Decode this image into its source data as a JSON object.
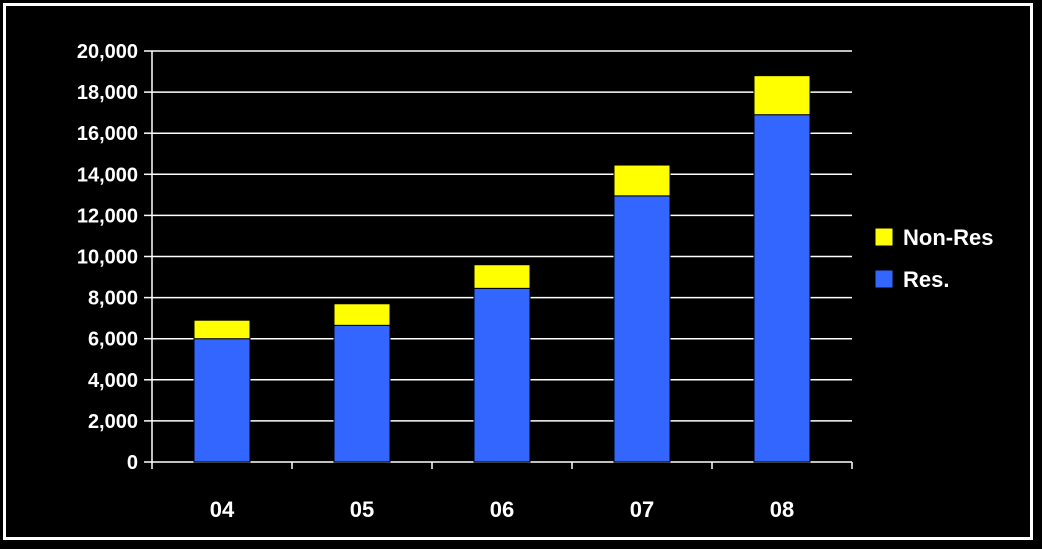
{
  "chart_data": {
    "type": "bar",
    "stacked": true,
    "categories": [
      "04",
      "05",
      "06",
      "07",
      "08"
    ],
    "series": [
      {
        "name": "Res.",
        "color": "#3366ff",
        "values": [
          6000,
          6650,
          8450,
          12950,
          16900
        ]
      },
      {
        "name": "Non-Res",
        "color": "#ffff00",
        "values": [
          900,
          1050,
          1150,
          1500,
          1900
        ]
      }
    ],
    "ylim": [
      0,
      20000
    ],
    "yticks": [
      "0",
      "2,000",
      "4,000",
      "6,000",
      "8,000",
      "10,000",
      "12,000",
      "14,000",
      "16,000",
      "18,000",
      "20,000"
    ],
    "title": "",
    "xlabel": "",
    "ylabel": "",
    "grid": true,
    "legend_position": "right"
  }
}
